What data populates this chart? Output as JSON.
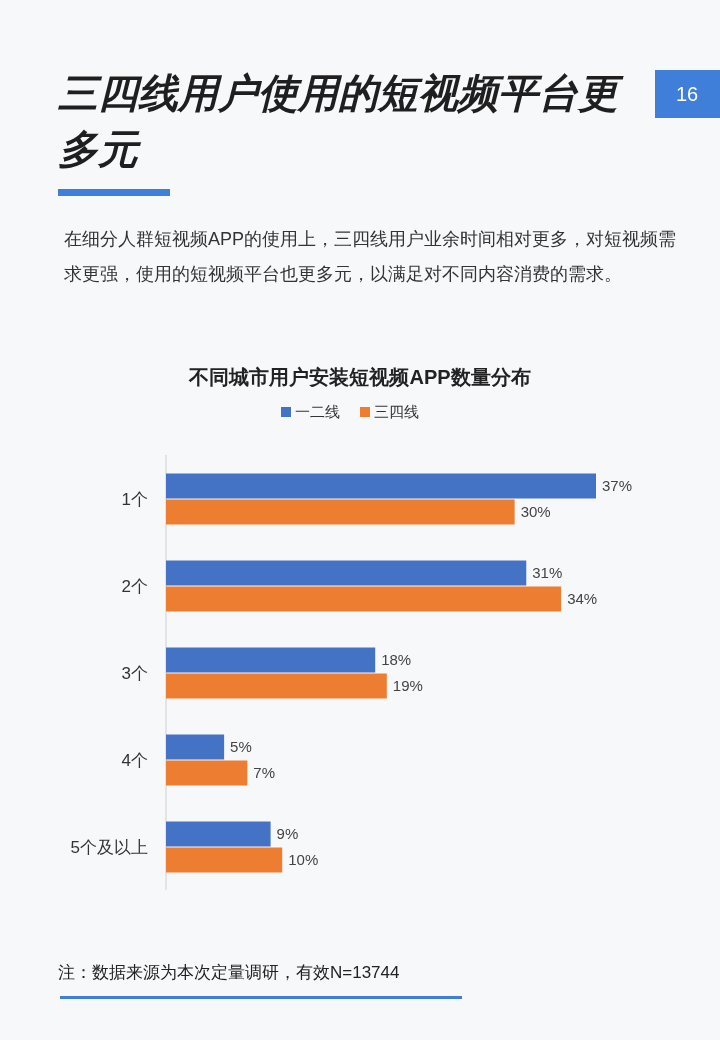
{
  "chart_data": {
    "type": "bar",
    "orientation": "horizontal",
    "title": "三四线用户使用的短视频平台更多元",
    "subtitle": "在细分人群短视频APP的使用上，三四线用户业余时间相对更多，对短视频需求更强，使用的短视频平台也更多元，以满足对不同内容消费的需求。",
    "annotations": [
      "16",
      "不同城市用户安装短视频APP数量分布",
      "注：数据来源为本次定量调研，有效N=13744"
    ],
    "categories": [
      "1个",
      "2个",
      "3个",
      "4个",
      "5个及以上"
    ],
    "series": [
      {
        "name": "一二线",
        "color": "#4472c4",
        "values": [
          37,
          31,
          18,
          5,
          9
        ],
        "value_labels": [
          "37%",
          "31%",
          "18%",
          "5%",
          "9%"
        ]
      },
      {
        "name": "三四线",
        "color": "#ed7d31",
        "values": [
          30,
          34,
          19,
          7,
          10
        ],
        "value_labels": [
          "30%",
          "34%",
          "19%",
          "7%",
          "10%"
        ]
      }
    ],
    "legend": "top"
  }
}
